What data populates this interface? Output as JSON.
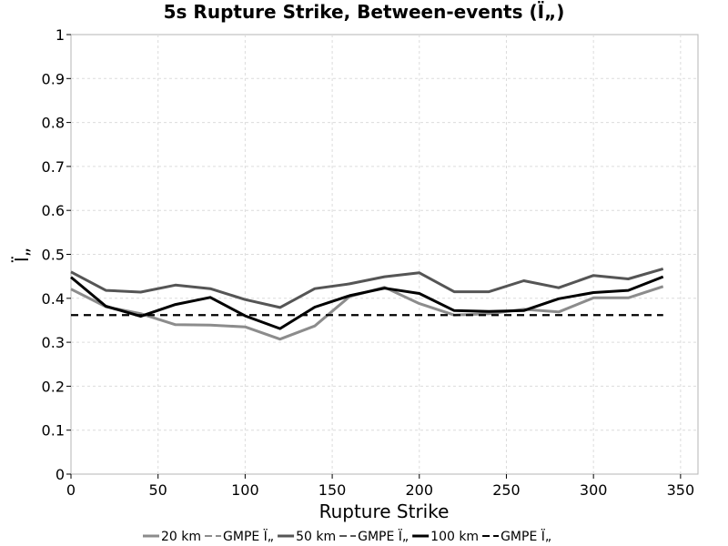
{
  "chart_data": {
    "type": "line",
    "title": "5s Rupture Strike, Between-events (Ï„)",
    "xlabel": "Rupture Strike",
    "ylabel": "Ï„",
    "xlim": [
      0,
      360
    ],
    "ylim": [
      0,
      1
    ],
    "x_ticks": [
      "0",
      "50",
      "100",
      "150",
      "200",
      "250",
      "300",
      "350"
    ],
    "y_ticks": [
      "0",
      "0.1",
      "0.2",
      "0.3",
      "0.4",
      "0.5",
      "0.6",
      "0.7",
      "0.8",
      "0.9",
      "1"
    ],
    "x_tick_values": [
      0,
      50,
      100,
      150,
      200,
      250,
      300,
      350
    ],
    "y_tick_values": [
      0,
      0.1,
      0.2,
      0.3,
      0.4,
      0.5,
      0.6,
      0.7,
      0.8,
      0.9,
      1
    ],
    "grid": true,
    "legend_position": "bottom",
    "x": [
      0,
      20,
      40,
      60,
      80,
      100,
      120,
      140,
      160,
      180,
      200,
      220,
      240,
      260,
      280,
      300,
      320,
      340
    ],
    "series": [
      {
        "name": "20 km",
        "color": "#8c8c8c",
        "dash": "solid",
        "y": [
          0.421,
          0.381,
          0.365,
          0.34,
          0.339,
          0.335,
          0.307,
          0.337,
          0.404,
          0.425,
          0.388,
          0.362,
          0.365,
          0.375,
          0.369,
          0.401,
          0.401,
          0.427
        ]
      },
      {
        "name": "GMPE Ï„",
        "color": "#8c8c8c",
        "dash": "dashed",
        "y": [
          0.362,
          0.362,
          0.362,
          0.362,
          0.362,
          0.362,
          0.362,
          0.362,
          0.362,
          0.362,
          0.362,
          0.362,
          0.362,
          0.362,
          0.362,
          0.362,
          0.362,
          0.362
        ]
      },
      {
        "name": "50 km",
        "color": "#555555",
        "dash": "solid",
        "y": [
          0.46,
          0.418,
          0.414,
          0.43,
          0.422,
          0.397,
          0.379,
          0.422,
          0.433,
          0.449,
          0.458,
          0.415,
          0.415,
          0.44,
          0.424,
          0.452,
          0.444,
          0.467
        ]
      },
      {
        "name": "GMPE Ï„",
        "color": "#555555",
        "dash": "dashed",
        "y": [
          0.362,
          0.362,
          0.362,
          0.362,
          0.362,
          0.362,
          0.362,
          0.362,
          0.362,
          0.362,
          0.362,
          0.362,
          0.362,
          0.362,
          0.362,
          0.362,
          0.362,
          0.362
        ]
      },
      {
        "name": "100 km",
        "color": "#000000",
        "dash": "solid",
        "y": [
          0.448,
          0.382,
          0.359,
          0.386,
          0.402,
          0.36,
          0.331,
          0.38,
          0.406,
          0.423,
          0.411,
          0.372,
          0.37,
          0.372,
          0.399,
          0.413,
          0.418,
          0.449
        ]
      },
      {
        "name": "GMPE Ï„",
        "color": "#000000",
        "dash": "dashed",
        "y": [
          0.362,
          0.362,
          0.362,
          0.362,
          0.362,
          0.362,
          0.362,
          0.362,
          0.362,
          0.362,
          0.362,
          0.362,
          0.362,
          0.362,
          0.362,
          0.362,
          0.362,
          0.362
        ]
      }
    ]
  }
}
